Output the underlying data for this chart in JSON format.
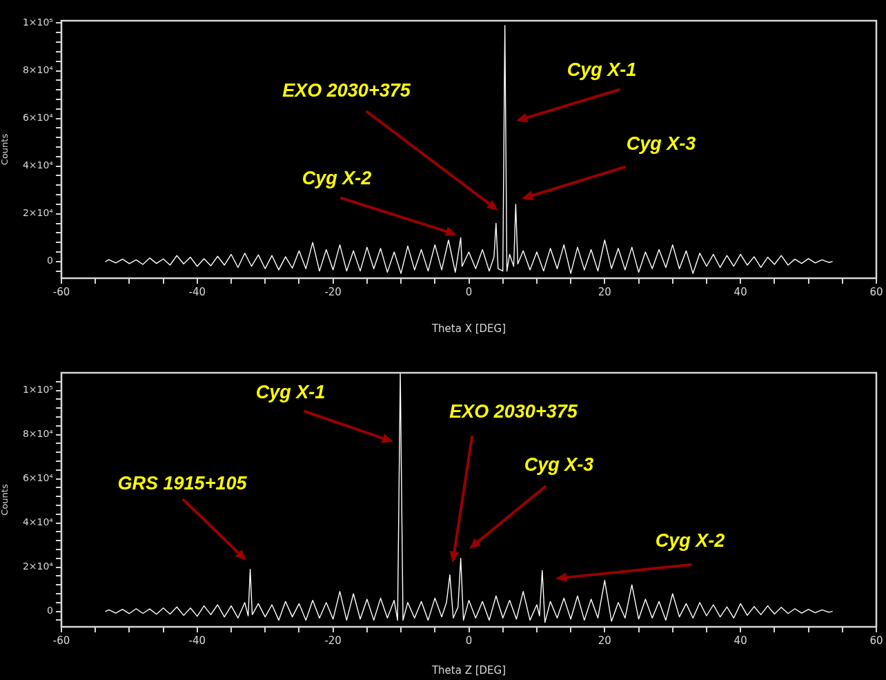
{
  "chart_data": [
    {
      "type": "line",
      "xlabel": "Theta X [DEG]",
      "ylabel": "Counts",
      "xlim": [
        -60,
        60
      ],
      "ylim": [
        -7000,
        101000
      ],
      "xticks": [
        -60,
        {
          "value": -55,
          "label": null
        },
        {
          "value": -50,
          "label": null
        },
        {
          "value": -45,
          "label": null
        },
        -40,
        {
          "value": -35,
          "label": null
        },
        {
          "value": -30,
          "label": null
        },
        {
          "value": -25,
          "label": null
        },
        -20,
        {
          "value": -15,
          "label": null
        },
        {
          "value": -10,
          "label": null
        },
        {
          "value": -5,
          "label": null
        },
        0,
        {
          "value": 5,
          "label": null
        },
        {
          "value": 10,
          "label": null
        },
        {
          "value": 15,
          "label": null
        },
        20,
        {
          "value": 25,
          "label": null
        },
        {
          "value": 30,
          "label": null
        },
        {
          "value": 35,
          "label": null
        },
        40,
        {
          "value": 45,
          "label": null
        },
        {
          "value": 50,
          "label": null
        },
        {
          "value": 55,
          "label": null
        },
        60
      ],
      "yticks": [
        {
          "value": -4000,
          "label": null
        },
        {
          "value": 0,
          "label": "0"
        },
        {
          "value": 4000,
          "label": null
        },
        {
          "value": 8000,
          "label": null
        },
        {
          "value": 12000,
          "label": null
        },
        {
          "value": 16000,
          "label": null
        },
        {
          "value": 20000,
          "label": "2×10⁴"
        },
        {
          "value": 24000,
          "label": null
        },
        {
          "value": 28000,
          "label": null
        },
        {
          "value": 32000,
          "label": null
        },
        {
          "value": 36000,
          "label": null
        },
        {
          "value": 40000,
          "label": "4×10⁴"
        },
        {
          "value": 44000,
          "label": null
        },
        {
          "value": 48000,
          "label": null
        },
        {
          "value": 52000,
          "label": null
        },
        {
          "value": 56000,
          "label": null
        },
        {
          "value": 60000,
          "label": "6×10⁴"
        },
        {
          "value": 64000,
          "label": null
        },
        {
          "value": 68000,
          "label": null
        },
        {
          "value": 72000,
          "label": null
        },
        {
          "value": 76000,
          "label": null
        },
        {
          "value": 80000,
          "label": "8×10⁴"
        },
        {
          "value": 84000,
          "label": null
        },
        {
          "value": 88000,
          "label": null
        },
        {
          "value": 92000,
          "label": null
        },
        {
          "value": 96000,
          "label": null
        },
        {
          "value": 100000,
          "label": "1×10⁵"
        }
      ],
      "x": [
        -53.5,
        -53,
        -52,
        -51,
        -50,
        -49,
        -48,
        -47,
        -46,
        -45,
        -44,
        -43,
        -42,
        -41,
        -40,
        -39,
        -38,
        -37,
        -36,
        -35,
        -34,
        -33,
        -32,
        -31,
        -30,
        -29,
        -28,
        -27,
        -26,
        -25,
        -24,
        -23,
        -22,
        -21,
        -20,
        -19,
        -18,
        -17,
        -16,
        -15,
        -14,
        -13,
        -12,
        -11,
        -10,
        -9,
        -8,
        -7,
        -6,
        -5,
        -4,
        -3,
        -2,
        -1.2,
        -1,
        0,
        1,
        2,
        3,
        3.7,
        4,
        4.3,
        5,
        5.3,
        5.6,
        6,
        6.6,
        6.9,
        7.2,
        8,
        9,
        10,
        11,
        12,
        13,
        14,
        15,
        16,
        17,
        18,
        19,
        20,
        21,
        22,
        23,
        24,
        25,
        26,
        27,
        28,
        29,
        30,
        31,
        32,
        33,
        34,
        35,
        36,
        37,
        38,
        39,
        40,
        41,
        42,
        43,
        44,
        45,
        46,
        47,
        48,
        49,
        50,
        51,
        52,
        53,
        53.5
      ],
      "series": [
        {
          "color": "#ffffff",
          "values": [
            0,
            800,
            -600,
            1000,
            -900,
            700,
            -1200,
            1500,
            -800,
            1100,
            -1500,
            2500,
            -1000,
            1800,
            -2000,
            1200,
            -1800,
            2200,
            -1500,
            3000,
            -2500,
            3500,
            -2000,
            2800,
            -3000,
            2500,
            -3500,
            2000,
            -2800,
            4500,
            -3000,
            8000,
            -4000,
            5000,
            -3500,
            7000,
            -4000,
            4500,
            -4000,
            6000,
            -3000,
            5500,
            -4500,
            4000,
            -5000,
            6500,
            -3500,
            5000,
            -4000,
            7000,
            -3500,
            9000,
            -4500,
            10000,
            -2000,
            4000,
            -3000,
            5000,
            -4000,
            2000,
            16000,
            -3000,
            -4000,
            99000,
            -4000,
            3000,
            -2000,
            24000,
            -1000,
            4500,
            -3500,
            4000,
            -4000,
            5500,
            -3000,
            7000,
            -5000,
            6000,
            -3500,
            5000,
            -4000,
            9000,
            -3000,
            5500,
            -3500,
            6000,
            -4500,
            4000,
            -3000,
            5000,
            -2500,
            7000,
            -3000,
            4500,
            -5000,
            3500,
            -2000,
            3000,
            -2500,
            2500,
            -2000,
            3000,
            -1500,
            2000,
            -2500,
            1800,
            -1200,
            2500,
            -1500,
            1000,
            -800,
            1200,
            -600,
            700,
            -400,
            0
          ]
        }
      ],
      "annotations": [
        "Cyg X-1",
        "EXO 2030+375",
        "Cyg X-3",
        "Cyg X-2"
      ]
    },
    {
      "type": "line",
      "xlabel": "Theta Z [DEG]",
      "ylabel": "Counts",
      "xlim": [
        -60,
        60
      ],
      "ylim": [
        -7000,
        108000
      ],
      "xticks": [
        -60,
        {
          "value": -55,
          "label": null
        },
        {
          "value": -50,
          "label": null
        },
        {
          "value": -45,
          "label": null
        },
        -40,
        {
          "value": -35,
          "label": null
        },
        {
          "value": -30,
          "label": null
        },
        {
          "value": -25,
          "label": null
        },
        -20,
        {
          "value": -15,
          "label": null
        },
        {
          "value": -10,
          "label": null
        },
        {
          "value": -5,
          "label": null
        },
        0,
        {
          "value": 5,
          "label": null
        },
        {
          "value": 10,
          "label": null
        },
        {
          "value": 15,
          "label": null
        },
        20,
        {
          "value": 25,
          "label": null
        },
        {
          "value": 30,
          "label": null
        },
        {
          "value": 35,
          "label": null
        },
        40,
        {
          "value": 45,
          "label": null
        },
        {
          "value": 50,
          "label": null
        },
        {
          "value": 55,
          "label": null
        },
        60
      ],
      "yticks": [
        {
          "value": -4000,
          "label": null
        },
        {
          "value": 0,
          "label": "0"
        },
        {
          "value": 4000,
          "label": null
        },
        {
          "value": 8000,
          "label": null
        },
        {
          "value": 12000,
          "label": null
        },
        {
          "value": 16000,
          "label": null
        },
        {
          "value": 20000,
          "label": "2×10⁴"
        },
        {
          "value": 24000,
          "label": null
        },
        {
          "value": 28000,
          "label": null
        },
        {
          "value": 32000,
          "label": null
        },
        {
          "value": 36000,
          "label": null
        },
        {
          "value": 40000,
          "label": "4×10⁴"
        },
        {
          "value": 44000,
          "label": null
        },
        {
          "value": 48000,
          "label": null
        },
        {
          "value": 52000,
          "label": null
        },
        {
          "value": 56000,
          "label": null
        },
        {
          "value": 60000,
          "label": "6×10⁴"
        },
        {
          "value": 64000,
          "label": null
        },
        {
          "value": 68000,
          "label": null
        },
        {
          "value": 72000,
          "label": null
        },
        {
          "value": 76000,
          "label": null
        },
        {
          "value": 80000,
          "label": "8×10⁴"
        },
        {
          "value": 84000,
          "label": null
        },
        {
          "value": 88000,
          "label": null
        },
        {
          "value": 92000,
          "label": null
        },
        {
          "value": 96000,
          "label": null
        },
        {
          "value": 100000,
          "label": "1×10⁵"
        },
        {
          "value": 104000,
          "label": null
        }
      ],
      "x": [
        -53.5,
        -53,
        -52,
        -51,
        -50,
        -49,
        -48,
        -47,
        -46,
        -45,
        -44,
        -43,
        -42,
        -41,
        -40,
        -39,
        -38,
        -37,
        -36,
        -35,
        -34,
        -33,
        -32.5,
        -32.2,
        -31.9,
        -31,
        -30,
        -29,
        -28,
        -27,
        -26,
        -25,
        -24,
        -23,
        -22,
        -21,
        -20,
        -19,
        -18,
        -17,
        -16,
        -15,
        -14,
        -13,
        -12,
        -11,
        -10.5,
        -10.1,
        -9.7,
        -9,
        -8,
        -7,
        -6,
        -5,
        -4,
        -3.3,
        -2.8,
        -2.3,
        -1.6,
        -1.2,
        -0.8,
        0,
        1,
        2,
        3,
        4,
        5,
        6,
        7,
        8,
        9,
        10,
        10.4,
        10.8,
        11.2,
        12,
        13,
        14,
        15,
        16,
        17,
        18,
        19,
        20,
        21,
        22,
        23,
        24,
        25,
        26,
        27,
        28,
        29,
        30,
        31,
        32,
        33,
        34,
        35,
        36,
        37,
        38,
        39,
        40,
        41,
        42,
        43,
        44,
        45,
        46,
        47,
        48,
        49,
        50,
        51,
        52,
        53,
        53.5
      ],
      "series": [
        {
          "color": "#ffffff",
          "values": [
            0,
            700,
            -800,
            900,
            -1000,
            1200,
            -900,
            1100,
            -1300,
            1500,
            -1200,
            2000,
            -1800,
            1500,
            -2200,
            2500,
            -1500,
            3000,
            -2500,
            2500,
            -3000,
            4000,
            -2000,
            19000,
            -1500,
            3500,
            -2500,
            3000,
            -4000,
            4500,
            -2500,
            3500,
            -4000,
            5000,
            -3000,
            4000,
            -3500,
            9000,
            -4000,
            8000,
            -3500,
            5500,
            -4000,
            6000,
            -3000,
            5000,
            -4000,
            108000,
            -4000,
            4000,
            -3000,
            4500,
            -4000,
            6000,
            -2500,
            4000,
            16500,
            -3000,
            2000,
            24000,
            -4000,
            5000,
            -3000,
            4500,
            -4000,
            7000,
            -3000,
            5000,
            -3500,
            9000,
            -4000,
            3000,
            -2000,
            18500,
            -5000,
            4500,
            -3000,
            6000,
            -3500,
            7000,
            -4000,
            5500,
            -3000,
            14000,
            -4500,
            4000,
            -3000,
            12000,
            -3500,
            5500,
            -3000,
            4500,
            -4000,
            8000,
            -2500,
            3500,
            -3000,
            4000,
            -2000,
            3000,
            -2500,
            2000,
            -3000,
            3500,
            -1800,
            2200,
            -1500,
            2500,
            -1200,
            1800,
            -1000,
            1200,
            -800,
            900,
            -600,
            700,
            -400,
            0
          ]
        }
      ],
      "annotations": [
        "Cyg X-1",
        "EXO 2030+375",
        "Cyg X-3",
        "GRS 1915+105",
        "Cyg X-2"
      ]
    }
  ]
}
